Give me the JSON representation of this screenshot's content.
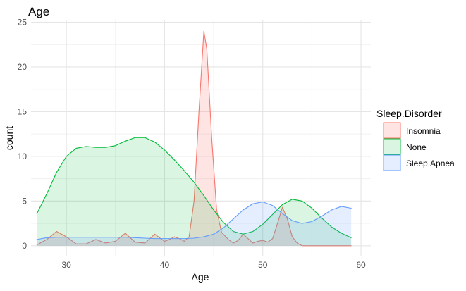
{
  "chart_data": {
    "type": "area",
    "title": "Age",
    "xlabel": "Age",
    "ylabel": "count",
    "xlim": [
      26.4,
      61.0
    ],
    "ylim": [
      -1.2,
      25.2
    ],
    "x_ticks": [
      30,
      40,
      50,
      60
    ],
    "y_ticks": [
      0,
      5,
      10,
      15,
      20,
      25
    ],
    "grid": true,
    "legend": {
      "title": "Sleep.Disorder",
      "placement": "right"
    },
    "series": [
      {
        "name": "Insomnia",
        "stroke": "#F8766D",
        "fill": "#F8766D",
        "fill_opacity": 0.2,
        "points": [
          [
            27.0,
            0.1
          ],
          [
            28.0,
            0.7
          ],
          [
            29.0,
            1.6
          ],
          [
            30.0,
            1.0
          ],
          [
            31.0,
            0.2
          ],
          [
            32.0,
            0.2
          ],
          [
            33.0,
            0.7
          ],
          [
            34.0,
            0.3
          ],
          [
            35.0,
            0.5
          ],
          [
            36.0,
            1.4
          ],
          [
            37.0,
            0.4
          ],
          [
            38.0,
            0.3
          ],
          [
            39.0,
            1.3
          ],
          [
            39.6,
            0.8
          ],
          [
            40.0,
            0.5
          ],
          [
            40.5,
            0.7
          ],
          [
            41.0,
            1.0
          ],
          [
            41.5,
            0.8
          ],
          [
            42.0,
            0.5
          ],
          [
            42.5,
            1.0
          ],
          [
            43.0,
            5.0
          ],
          [
            43.5,
            15.0
          ],
          [
            44.0,
            24.0
          ],
          [
            44.3,
            22.0
          ],
          [
            44.8,
            12.0
          ],
          [
            45.3,
            4.0
          ],
          [
            45.8,
            1.5
          ],
          [
            46.5,
            0.7
          ],
          [
            47.0,
            0.3
          ],
          [
            47.5,
            0.6
          ],
          [
            48.0,
            1.3
          ],
          [
            48.5,
            0.8
          ],
          [
            49.0,
            0.3
          ],
          [
            49.5,
            0.5
          ],
          [
            50.0,
            0.6
          ],
          [
            50.5,
            0.4
          ],
          [
            51.0,
            0.8
          ],
          [
            51.5,
            2.5
          ],
          [
            52.0,
            4.3
          ],
          [
            52.5,
            3.0
          ],
          [
            53.0,
            1.0
          ],
          [
            53.5,
            0.3
          ],
          [
            54.0,
            0.0
          ],
          [
            56.0,
            0.0
          ],
          [
            59.0,
            0.0
          ]
        ]
      },
      {
        "name": "None",
        "stroke": "#00BA38",
        "fill": "#00BA38",
        "fill_opacity": 0.14,
        "points": [
          [
            27.0,
            3.6
          ],
          [
            28.0,
            5.8
          ],
          [
            29.0,
            8.2
          ],
          [
            30.0,
            10.0
          ],
          [
            31.0,
            10.9
          ],
          [
            32.0,
            11.1
          ],
          [
            33.0,
            11.0
          ],
          [
            34.0,
            11.0
          ],
          [
            35.0,
            11.2
          ],
          [
            36.0,
            11.7
          ],
          [
            37.0,
            12.1
          ],
          [
            38.0,
            12.1
          ],
          [
            39.0,
            11.6
          ],
          [
            40.0,
            10.7
          ],
          [
            41.0,
            9.6
          ],
          [
            42.0,
            8.4
          ],
          [
            43.0,
            7.1
          ],
          [
            44.0,
            5.6
          ],
          [
            45.0,
            4.0
          ],
          [
            46.0,
            2.6
          ],
          [
            47.0,
            1.6
          ],
          [
            48.0,
            1.3
          ],
          [
            49.0,
            1.6
          ],
          [
            50.0,
            2.4
          ],
          [
            51.0,
            3.5
          ],
          [
            52.0,
            4.6
          ],
          [
            53.0,
            5.2
          ],
          [
            54.0,
            5.0
          ],
          [
            55.0,
            4.2
          ],
          [
            56.0,
            3.1
          ],
          [
            57.0,
            2.1
          ],
          [
            58.0,
            1.4
          ],
          [
            59.0,
            0.9
          ]
        ]
      },
      {
        "name": "Sleep.Apnea",
        "stroke": "#619CFF",
        "fill": "#619CFF",
        "fill_opacity": 0.17,
        "points": [
          [
            27.0,
            0.7
          ],
          [
            28.0,
            0.9
          ],
          [
            29.0,
            0.95
          ],
          [
            30.0,
            0.95
          ],
          [
            31.0,
            0.95
          ],
          [
            32.0,
            0.95
          ],
          [
            33.0,
            0.95
          ],
          [
            34.0,
            0.95
          ],
          [
            35.0,
            0.95
          ],
          [
            36.0,
            0.95
          ],
          [
            37.0,
            0.9
          ],
          [
            38.0,
            0.85
          ],
          [
            39.0,
            0.8
          ],
          [
            40.0,
            0.8
          ],
          [
            41.0,
            0.8
          ],
          [
            42.0,
            0.8
          ],
          [
            43.0,
            0.85
          ],
          [
            44.0,
            1.0
          ],
          [
            45.0,
            1.3
          ],
          [
            46.0,
            2.0
          ],
          [
            47.0,
            3.0
          ],
          [
            48.0,
            4.0
          ],
          [
            49.0,
            4.7
          ],
          [
            50.0,
            4.9
          ],
          [
            51.0,
            4.5
          ],
          [
            52.0,
            3.6
          ],
          [
            53.0,
            2.8
          ],
          [
            54.0,
            2.5
          ],
          [
            55.0,
            2.7
          ],
          [
            56.0,
            3.3
          ],
          [
            57.0,
            4.0
          ],
          [
            58.0,
            4.4
          ],
          [
            59.0,
            4.2
          ]
        ]
      }
    ]
  }
}
